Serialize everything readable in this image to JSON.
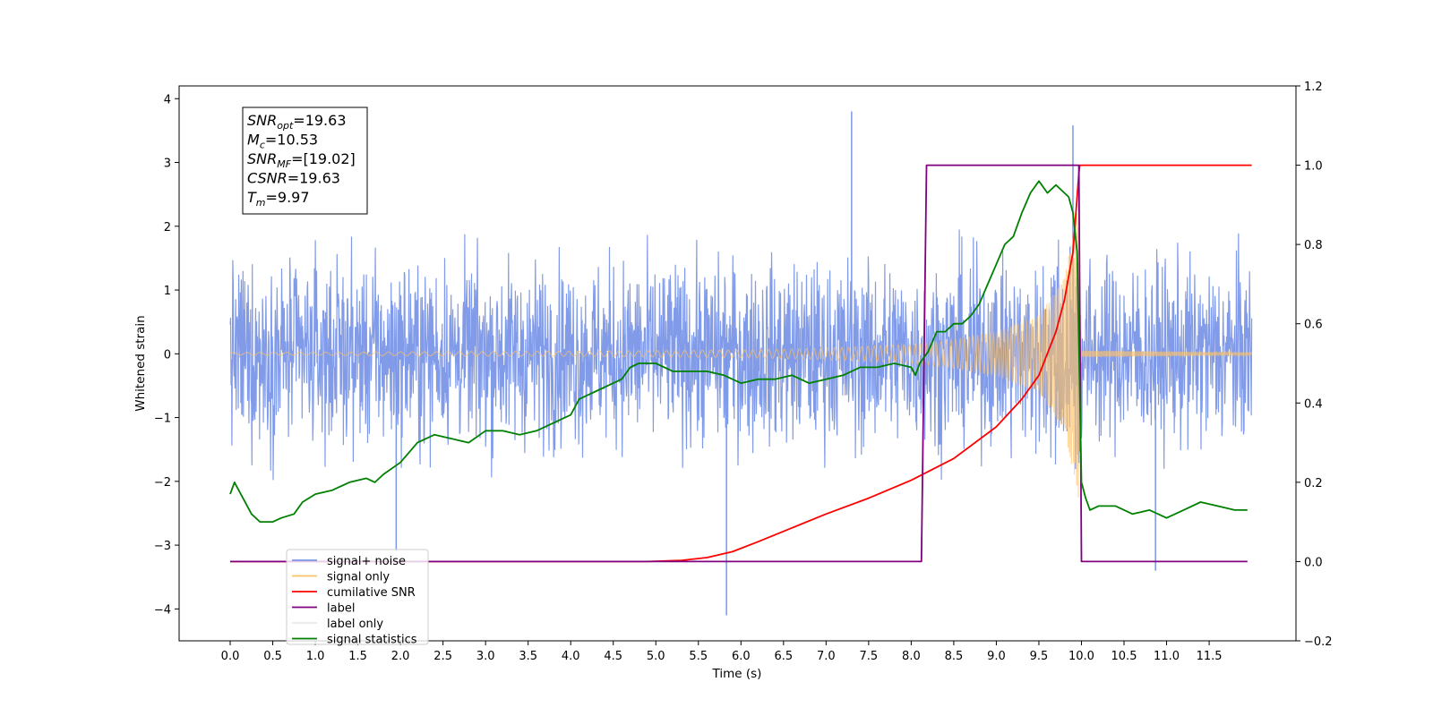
{
  "chart_data": {
    "type": "line",
    "xlabel": "Time (s)",
    "ylabel_left": "Whitened strain",
    "ylabel_right": "",
    "xlim": [
      -0.6,
      12.52
    ],
    "ylim_left": [
      -4.5,
      4.2
    ],
    "ylim_right": [
      -0.2,
      1.2
    ],
    "x_ticks": [
      "0.0",
      "0.5",
      "1.0",
      "1.5",
      "2.0",
      "2.5",
      "3.0",
      "3.5",
      "4.0",
      "4.5",
      "5.0",
      "5.5",
      "6.0",
      "6.5",
      "7.0",
      "7.5",
      "8.0",
      "8.5",
      "9.0",
      "9.5",
      "10.0",
      "10.5",
      "11.0",
      "11.5"
    ],
    "y_ticks_left": [
      "4",
      "3",
      "2",
      "1",
      "0",
      "−1",
      "−2",
      "−3",
      "−4"
    ],
    "y_ticks_right": [
      "1.2",
      "1.0",
      "0.8",
      "0.6",
      "0.4",
      "0.2",
      "0.0",
      "−0.2"
    ],
    "grid": false,
    "legend_position": "lower-left",
    "legend": [
      {
        "label": "signal+ noise",
        "color": "#7a96e8"
      },
      {
        "label": "signal only",
        "color": "#ffc266"
      },
      {
        "label": "cumilative SNR",
        "color": "#ff0000"
      },
      {
        "label": "label",
        "color": "#800080"
      },
      {
        "label": "label only",
        "color": "#e8e8e8"
      },
      {
        "label": "signal statistics",
        "color": "#008000"
      }
    ],
    "series": [
      {
        "name": "signal+ noise",
        "axis": "left",
        "color": "#7a96e8",
        "x_range": [
          0.0,
          12.0
        ],
        "envelope_approx": [
          -2.5,
          2.5
        ],
        "extremes": [
          {
            "x": 5.83,
            "y": -4.1
          },
          {
            "x": 7.3,
            "y": 3.8
          },
          {
            "x": 9.9,
            "y": 3.58
          },
          {
            "x": 10.87,
            "y": -3.4
          },
          {
            "x": 1.95,
            "y": -3.1
          }
        ]
      },
      {
        "name": "signal only",
        "axis": "left",
        "color": "#ffc266",
        "chirp_envelope": {
          "x": [
            0.0,
            4.0,
            6.0,
            7.0,
            8.0,
            8.5,
            9.0,
            9.5,
            9.8,
            9.92,
            9.97,
            10.0,
            12.0
          ],
          "amp": [
            0.02,
            0.04,
            0.06,
            0.09,
            0.15,
            0.22,
            0.35,
            0.6,
            1.2,
            2.0,
            2.4,
            0.05,
            0.02
          ]
        }
      },
      {
        "name": "cumilative SNR",
        "axis": "right",
        "color": "#ff0000",
        "x": [
          0.0,
          4.9,
          5.3,
          5.6,
          5.9,
          6.2,
          6.6,
          7.0,
          7.5,
          8.0,
          8.5,
          9.0,
          9.3,
          9.5,
          9.7,
          9.8,
          9.9,
          9.97,
          9.98,
          12.0
        ],
        "y": [
          0.0,
          0.0,
          0.003,
          0.01,
          0.025,
          0.05,
          0.085,
          0.12,
          0.16,
          0.205,
          0.26,
          0.34,
          0.41,
          0.47,
          0.58,
          0.66,
          0.78,
          0.98,
          1.0,
          1.0
        ]
      },
      {
        "name": "label",
        "axis": "right",
        "color": "#800080",
        "x": [
          0.0,
          8.12,
          8.18,
          9.97,
          10.0,
          11.95
        ],
        "y": [
          0.0,
          0.0,
          1.0,
          1.0,
          0.0,
          0.0
        ]
      },
      {
        "name": "signal statistics",
        "axis": "right",
        "color": "#008000",
        "x": [
          0.0,
          0.05,
          0.15,
          0.25,
          0.35,
          0.5,
          0.6,
          0.75,
          0.85,
          1.0,
          1.2,
          1.4,
          1.6,
          1.7,
          1.8,
          2.0,
          2.2,
          2.4,
          2.6,
          2.8,
          3.0,
          3.2,
          3.4,
          3.6,
          3.8,
          4.0,
          4.1,
          4.2,
          4.3,
          4.4,
          4.5,
          4.6,
          4.7,
          4.8,
          5.0,
          5.2,
          5.4,
          5.6,
          5.8,
          6.0,
          6.2,
          6.4,
          6.6,
          6.8,
          7.0,
          7.2,
          7.4,
          7.6,
          7.8,
          8.0,
          8.05,
          8.1,
          8.2,
          8.3,
          8.4,
          8.5,
          8.6,
          8.7,
          8.8,
          8.9,
          9.0,
          9.1,
          9.2,
          9.3,
          9.4,
          9.5,
          9.6,
          9.7,
          9.8,
          9.85,
          9.9,
          9.95,
          10.0,
          10.05,
          10.1,
          10.2,
          10.4,
          10.6,
          10.8,
          11.0,
          11.2,
          11.4,
          11.6,
          11.8,
          11.95
        ],
        "y": [
          0.17,
          0.2,
          0.16,
          0.12,
          0.1,
          0.1,
          0.11,
          0.12,
          0.15,
          0.17,
          0.18,
          0.2,
          0.21,
          0.2,
          0.22,
          0.25,
          0.3,
          0.32,
          0.31,
          0.3,
          0.33,
          0.33,
          0.32,
          0.33,
          0.35,
          0.37,
          0.41,
          0.42,
          0.43,
          0.44,
          0.45,
          0.46,
          0.49,
          0.5,
          0.5,
          0.48,
          0.48,
          0.48,
          0.47,
          0.45,
          0.46,
          0.46,
          0.47,
          0.45,
          0.46,
          0.47,
          0.49,
          0.49,
          0.5,
          0.49,
          0.47,
          0.5,
          0.53,
          0.58,
          0.58,
          0.6,
          0.6,
          0.62,
          0.65,
          0.7,
          0.75,
          0.8,
          0.82,
          0.88,
          0.93,
          0.96,
          0.93,
          0.95,
          0.93,
          0.92,
          0.88,
          0.78,
          0.2,
          0.16,
          0.13,
          0.14,
          0.14,
          0.12,
          0.13,
          0.11,
          0.13,
          0.15,
          0.14,
          0.13,
          0.13
        ]
      }
    ],
    "annotation_box": [
      {
        "sym": "SNR",
        "sub": "opt",
        "text": "=19.63"
      },
      {
        "sym": "M",
        "sub": "c",
        "text": "=10.53"
      },
      {
        "sym": "SNR",
        "sub": "MF",
        "text": "=[19.02]"
      },
      {
        "sym": "CSNR",
        "sub": "",
        "text": "=19.63"
      },
      {
        "sym": "T",
        "sub": "m",
        "text": "=9.97"
      }
    ]
  }
}
